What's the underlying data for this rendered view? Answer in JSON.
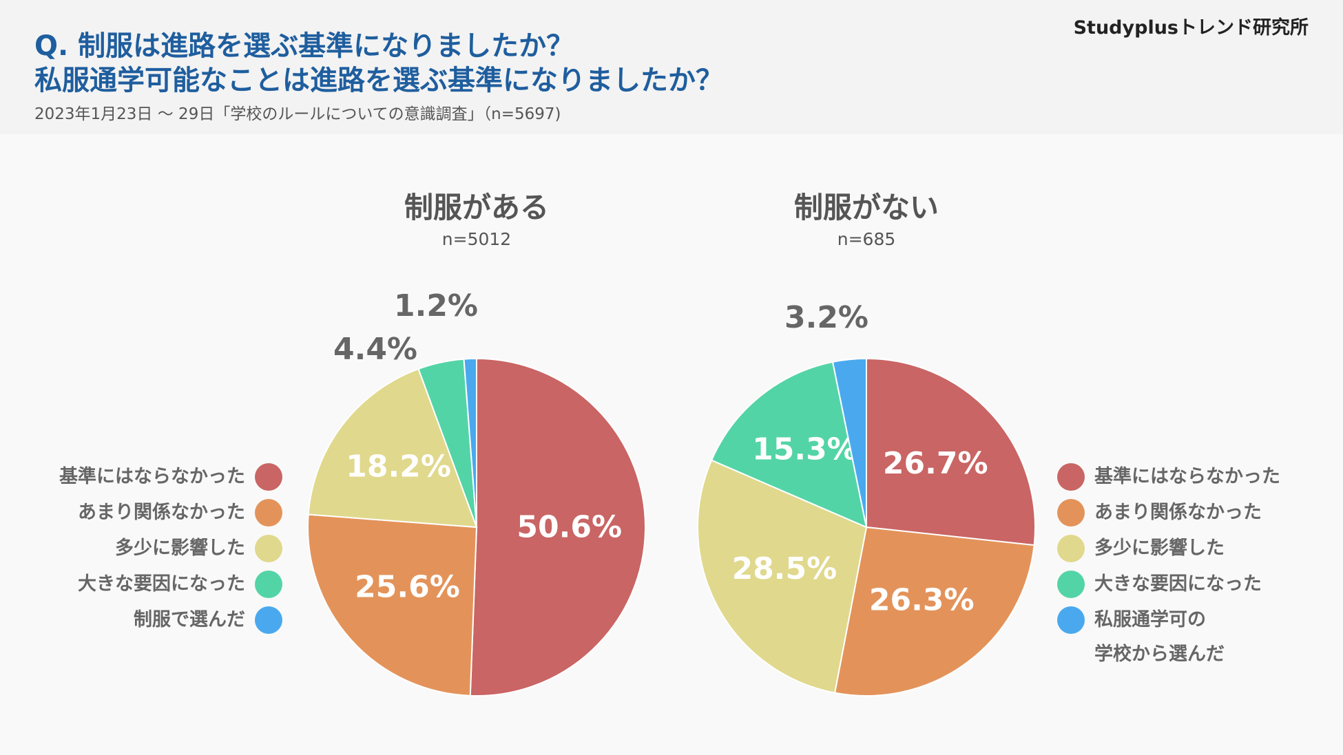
{
  "brand": "Studyplusトレンド研究所",
  "title_line1": "Q. 制服は進路を選ぶ基準になりましたか？",
  "title_line2": "私服通学可能なことは進路を選ぶ基準になりましたか？",
  "subtitle": "2023年1月23日 〜 29日「学校のルールについての意識調査」（n=5697)",
  "colors": {
    "red": "#c96564",
    "orange": "#e3935a",
    "yellow": "#e0d88c",
    "green": "#53d4a7",
    "blue": "#4aa9ee"
  },
  "chart_data": [
    {
      "type": "pie",
      "title": "制服がある",
      "n_label": "n=5012",
      "slices": [
        {
          "label": "基準にはならなかった",
          "value": 50.6,
          "value_label": "50.6%",
          "color": "#c96564"
        },
        {
          "label": "あまり関係なかった",
          "value": 25.6,
          "value_label": "25.6%",
          "color": "#e3935a"
        },
        {
          "label": "多少に影響した",
          "value": 18.2,
          "value_label": "18.2%",
          "color": "#e0d88c"
        },
        {
          "label": "大きな要因になった",
          "value": 4.4,
          "value_label": "4.4%",
          "color": "#53d4a7"
        },
        {
          "label": "制服で選んだ",
          "value": 1.2,
          "value_label": "1.2%",
          "color": "#4aa9ee"
        }
      ],
      "legend": [
        "基準にはならなかった",
        "あまり関係なかった",
        "多少に影響した",
        "大きな要因になった",
        "制服で選んだ"
      ]
    },
    {
      "type": "pie",
      "title": "制服がない",
      "n_label": "n=685",
      "slices": [
        {
          "label": "基準にはならなかった",
          "value": 26.7,
          "value_label": "26.7%",
          "color": "#c96564"
        },
        {
          "label": "あまり関係なかった",
          "value": 26.3,
          "value_label": "26.3%",
          "color": "#e3935a"
        },
        {
          "label": "多少に影響した",
          "value": 28.5,
          "value_label": "28.5%",
          "color": "#e0d88c"
        },
        {
          "label": "大きな要因になった",
          "value": 15.3,
          "value_label": "15.3%",
          "color": "#53d4a7"
        },
        {
          "label": "私服通学可の学校から選んだ",
          "value": 3.2,
          "value_label": "3.2%",
          "color": "#4aa9ee"
        }
      ],
      "legend": [
        "基準にはならなかった",
        "あまり関係なかった",
        "多少に影響した",
        "大きな要因になった"
      ],
      "legend_last_line1": "私服通学可の",
      "legend_last_line2": "学校から選んだ"
    }
  ]
}
